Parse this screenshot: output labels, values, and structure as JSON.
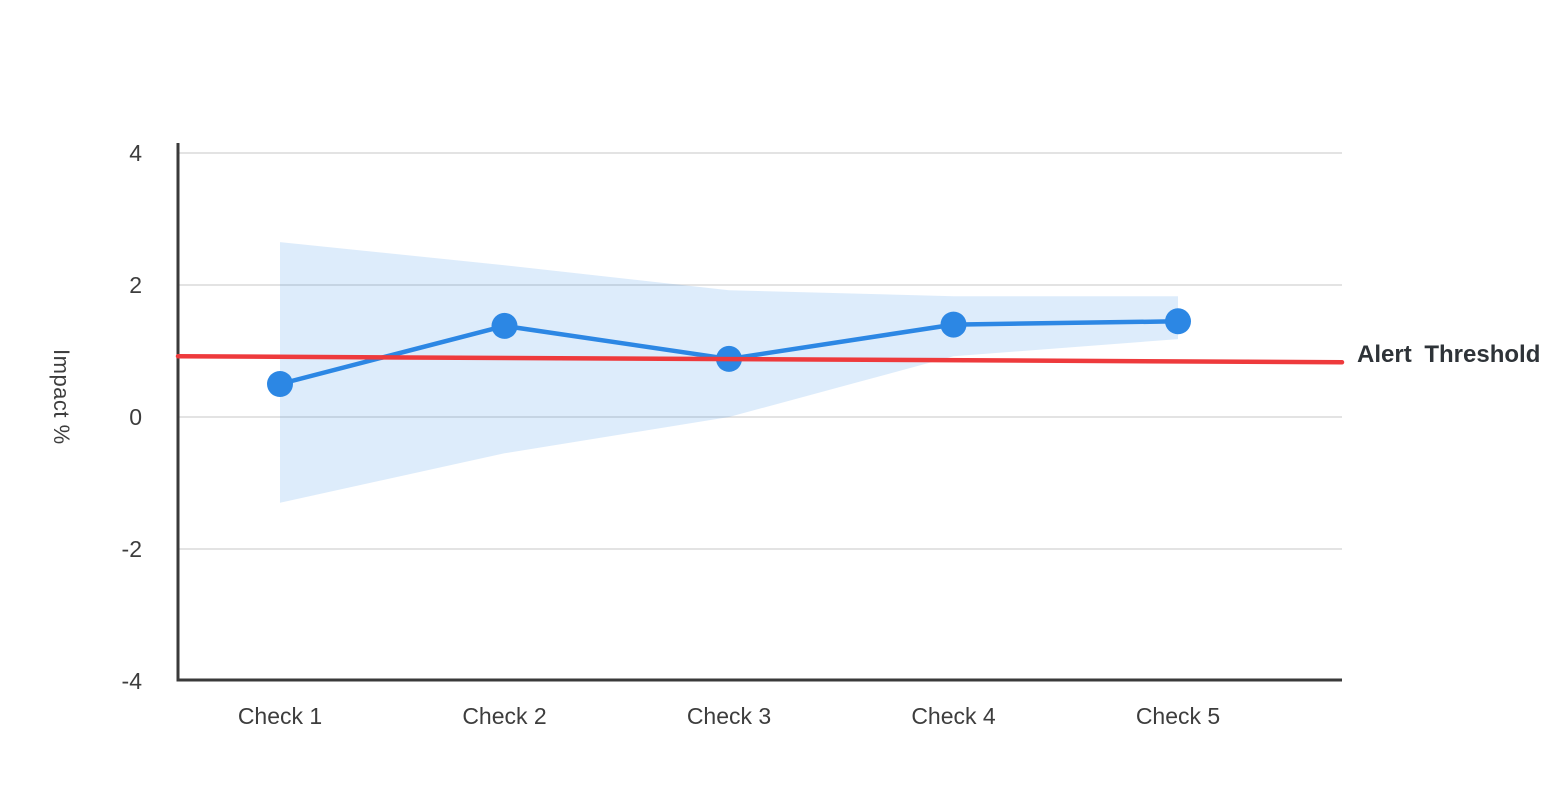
{
  "page": {
    "background": "#ffffff"
  },
  "chart_data": {
    "type": "line",
    "title": "",
    "xlabel": "",
    "ylabel": "Impact %",
    "categories": [
      "Check 1",
      "Check 2",
      "Check 3",
      "Check 4",
      "Check 5"
    ],
    "series": [
      {
        "name": "Impact",
        "values": [
          0.5,
          1.38,
          0.88,
          1.4,
          1.45
        ],
        "color": "#2C87E4",
        "marker": "circle"
      }
    ],
    "band": {
      "name": "confidence-band",
      "upper": [
        2.65,
        2.3,
        1.92,
        1.83,
        1.83
      ],
      "lower": [
        -1.3,
        -0.55,
        0.0,
        0.92,
        1.18
      ],
      "color": "#2C87E4",
      "opacity": 0.16
    },
    "threshold": {
      "label": "Alert Threshold",
      "start_value": 0.92,
      "end_value": 0.83,
      "color": "#EE3A3C"
    },
    "ylim": [
      -4,
      4
    ],
    "yticks": [
      4,
      2,
      0,
      -2,
      -4
    ],
    "grid": true,
    "legend_position": "right-of-threshold-line",
    "colors": {
      "grid": "#E3E3E3",
      "axis": "#3A3A3A",
      "tick_text": "#3D3D3D",
      "threshold_text": "#2E3338"
    }
  }
}
